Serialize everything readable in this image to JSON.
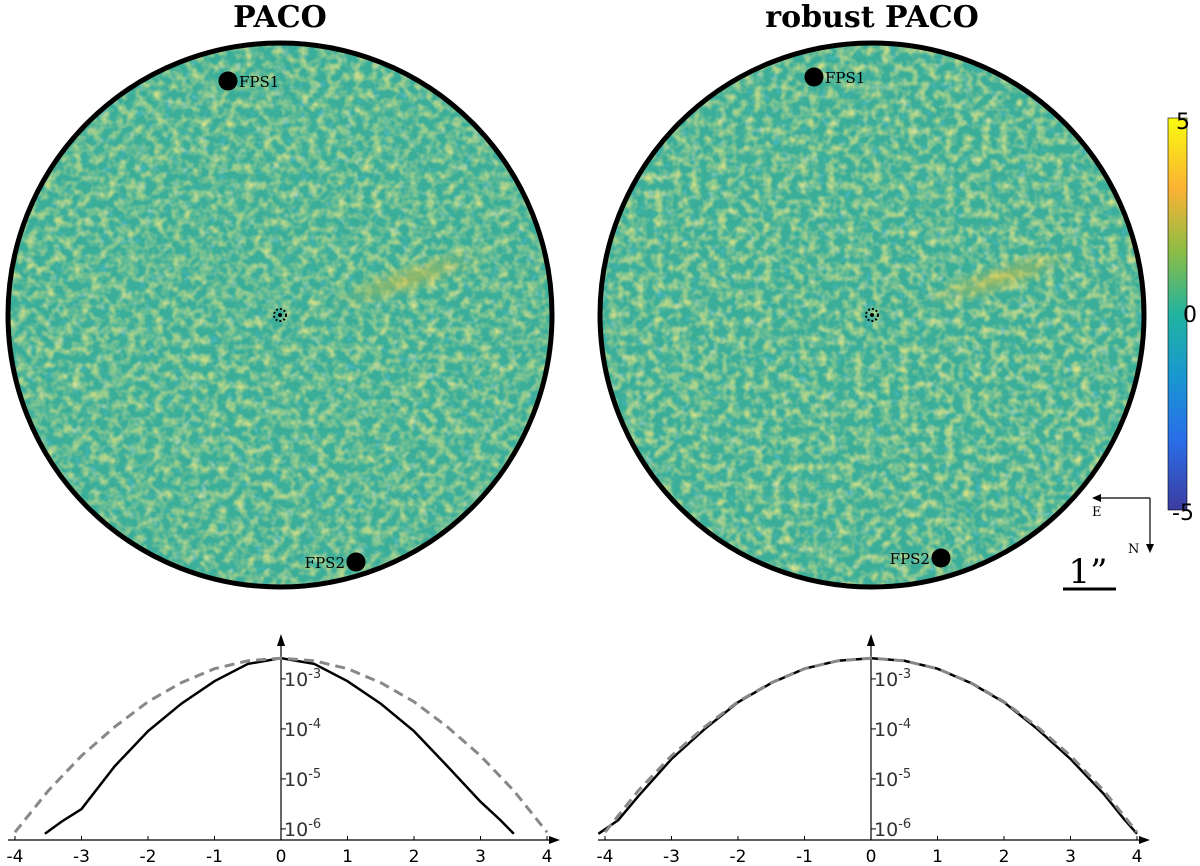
{
  "panels": [
    {
      "title": "PACO",
      "markers": [
        {
          "label": "FPS1"
        },
        {
          "label": "FPS2"
        }
      ]
    },
    {
      "title": "robust PACO",
      "markers": [
        {
          "label": "FPS1"
        },
        {
          "label": "FPS2"
        }
      ]
    }
  ],
  "colorbar": {
    "colormap": "parula",
    "min": -5,
    "max": 5,
    "ticks": [
      "5",
      "0",
      "-5"
    ],
    "colors": [
      "#f9fb0e",
      "#fbb233",
      "#8cbd45",
      "#21b39f",
      "#1897d1",
      "#2a6ee8",
      "#3c3ca0"
    ]
  },
  "compass": {
    "east": "E",
    "north": "N"
  },
  "scale_bar": {
    "label": "1”"
  },
  "chart_data": [
    {
      "type": "line",
      "title": "",
      "xlabel": "",
      "ylabel": "",
      "y_scale": "log",
      "xlim": [
        -4.2,
        4.3
      ],
      "ylim": [
        6e-07,
        0.006
      ],
      "x_ticks": [
        "-4",
        "-3",
        "-2",
        "-1",
        "0",
        "1",
        "2",
        "3",
        "4"
      ],
      "y_ticks": [
        "10-3",
        "10-4",
        "10-5",
        "10-6"
      ],
      "series": [
        {
          "style": "solid-black",
          "x": [
            -3.55,
            -3.3,
            -3.0,
            -2.5,
            -2.0,
            -1.5,
            -1.0,
            -0.5,
            0.0,
            0.5,
            1.0,
            1.5,
            2.0,
            2.5,
            3.0,
            3.3,
            3.5
          ],
          "y": [
            8e-07,
            1.4e-06,
            2.5e-06,
            1.8e-05,
            9e-05,
            0.00032,
            0.0009,
            0.002,
            0.0026,
            0.002,
            0.0009,
            0.00032,
            9e-05,
            1.8e-05,
            3.5e-06,
            1.5e-06,
            8e-07
          ]
        },
        {
          "style": "dashed-grey",
          "x": [
            -4.0,
            -3.5,
            -3.0,
            -2.5,
            -2.0,
            -1.5,
            -1.0,
            -0.5,
            0.0,
            0.5,
            1.0,
            1.5,
            2.0,
            2.5,
            3.0,
            3.5,
            4.0
          ],
          "y": [
            8.6e-07,
            5.8e-06,
            2.9e-05,
            0.00011,
            0.00035,
            0.00084,
            0.0016,
            0.0023,
            0.0026,
            0.0023,
            0.0016,
            0.00084,
            0.00035,
            0.00011,
            2.9e-05,
            5.8e-06,
            8.6e-07
          ]
        }
      ]
    },
    {
      "type": "line",
      "title": "",
      "xlabel": "",
      "ylabel": "",
      "y_scale": "log",
      "xlim": [
        -4.2,
        4.3
      ],
      "ylim": [
        6e-07,
        0.006
      ],
      "x_ticks": [
        "-4",
        "-3",
        "-2",
        "-1",
        "0",
        "1",
        "2",
        "3",
        "4"
      ],
      "y_ticks": [
        "10-3",
        "10-4",
        "10-5",
        "10-6"
      ],
      "series": [
        {
          "style": "solid-black",
          "x": [
            -4.1,
            -3.8,
            -3.5,
            -3.0,
            -2.5,
            -2.0,
            -1.5,
            -1.0,
            -0.5,
            0.0,
            0.5,
            1.0,
            1.5,
            2.0,
            2.5,
            3.0,
            3.5,
            3.8,
            4.0
          ],
          "y": [
            8e-07,
            1.5e-06,
            4.5e-06,
            2.5e-05,
            0.0001,
            0.00034,
            0.00083,
            0.0016,
            0.0023,
            0.0026,
            0.0023,
            0.0016,
            0.00083,
            0.00034,
            0.0001,
            2.5e-05,
            5e-06,
            1.6e-06,
            8e-07
          ]
        },
        {
          "style": "dashed-grey",
          "x": [
            -4.0,
            -3.5,
            -3.0,
            -2.5,
            -2.0,
            -1.5,
            -1.0,
            -0.5,
            0.0,
            0.5,
            1.0,
            1.5,
            2.0,
            2.5,
            3.0,
            3.5,
            4.0
          ],
          "y": [
            8.6e-07,
            5.8e-06,
            2.9e-05,
            0.00011,
            0.00035,
            0.00084,
            0.0016,
            0.0023,
            0.0026,
            0.0023,
            0.0016,
            0.00084,
            0.00035,
            0.00011,
            2.9e-05,
            5.8e-06,
            8.6e-07
          ]
        }
      ]
    }
  ]
}
